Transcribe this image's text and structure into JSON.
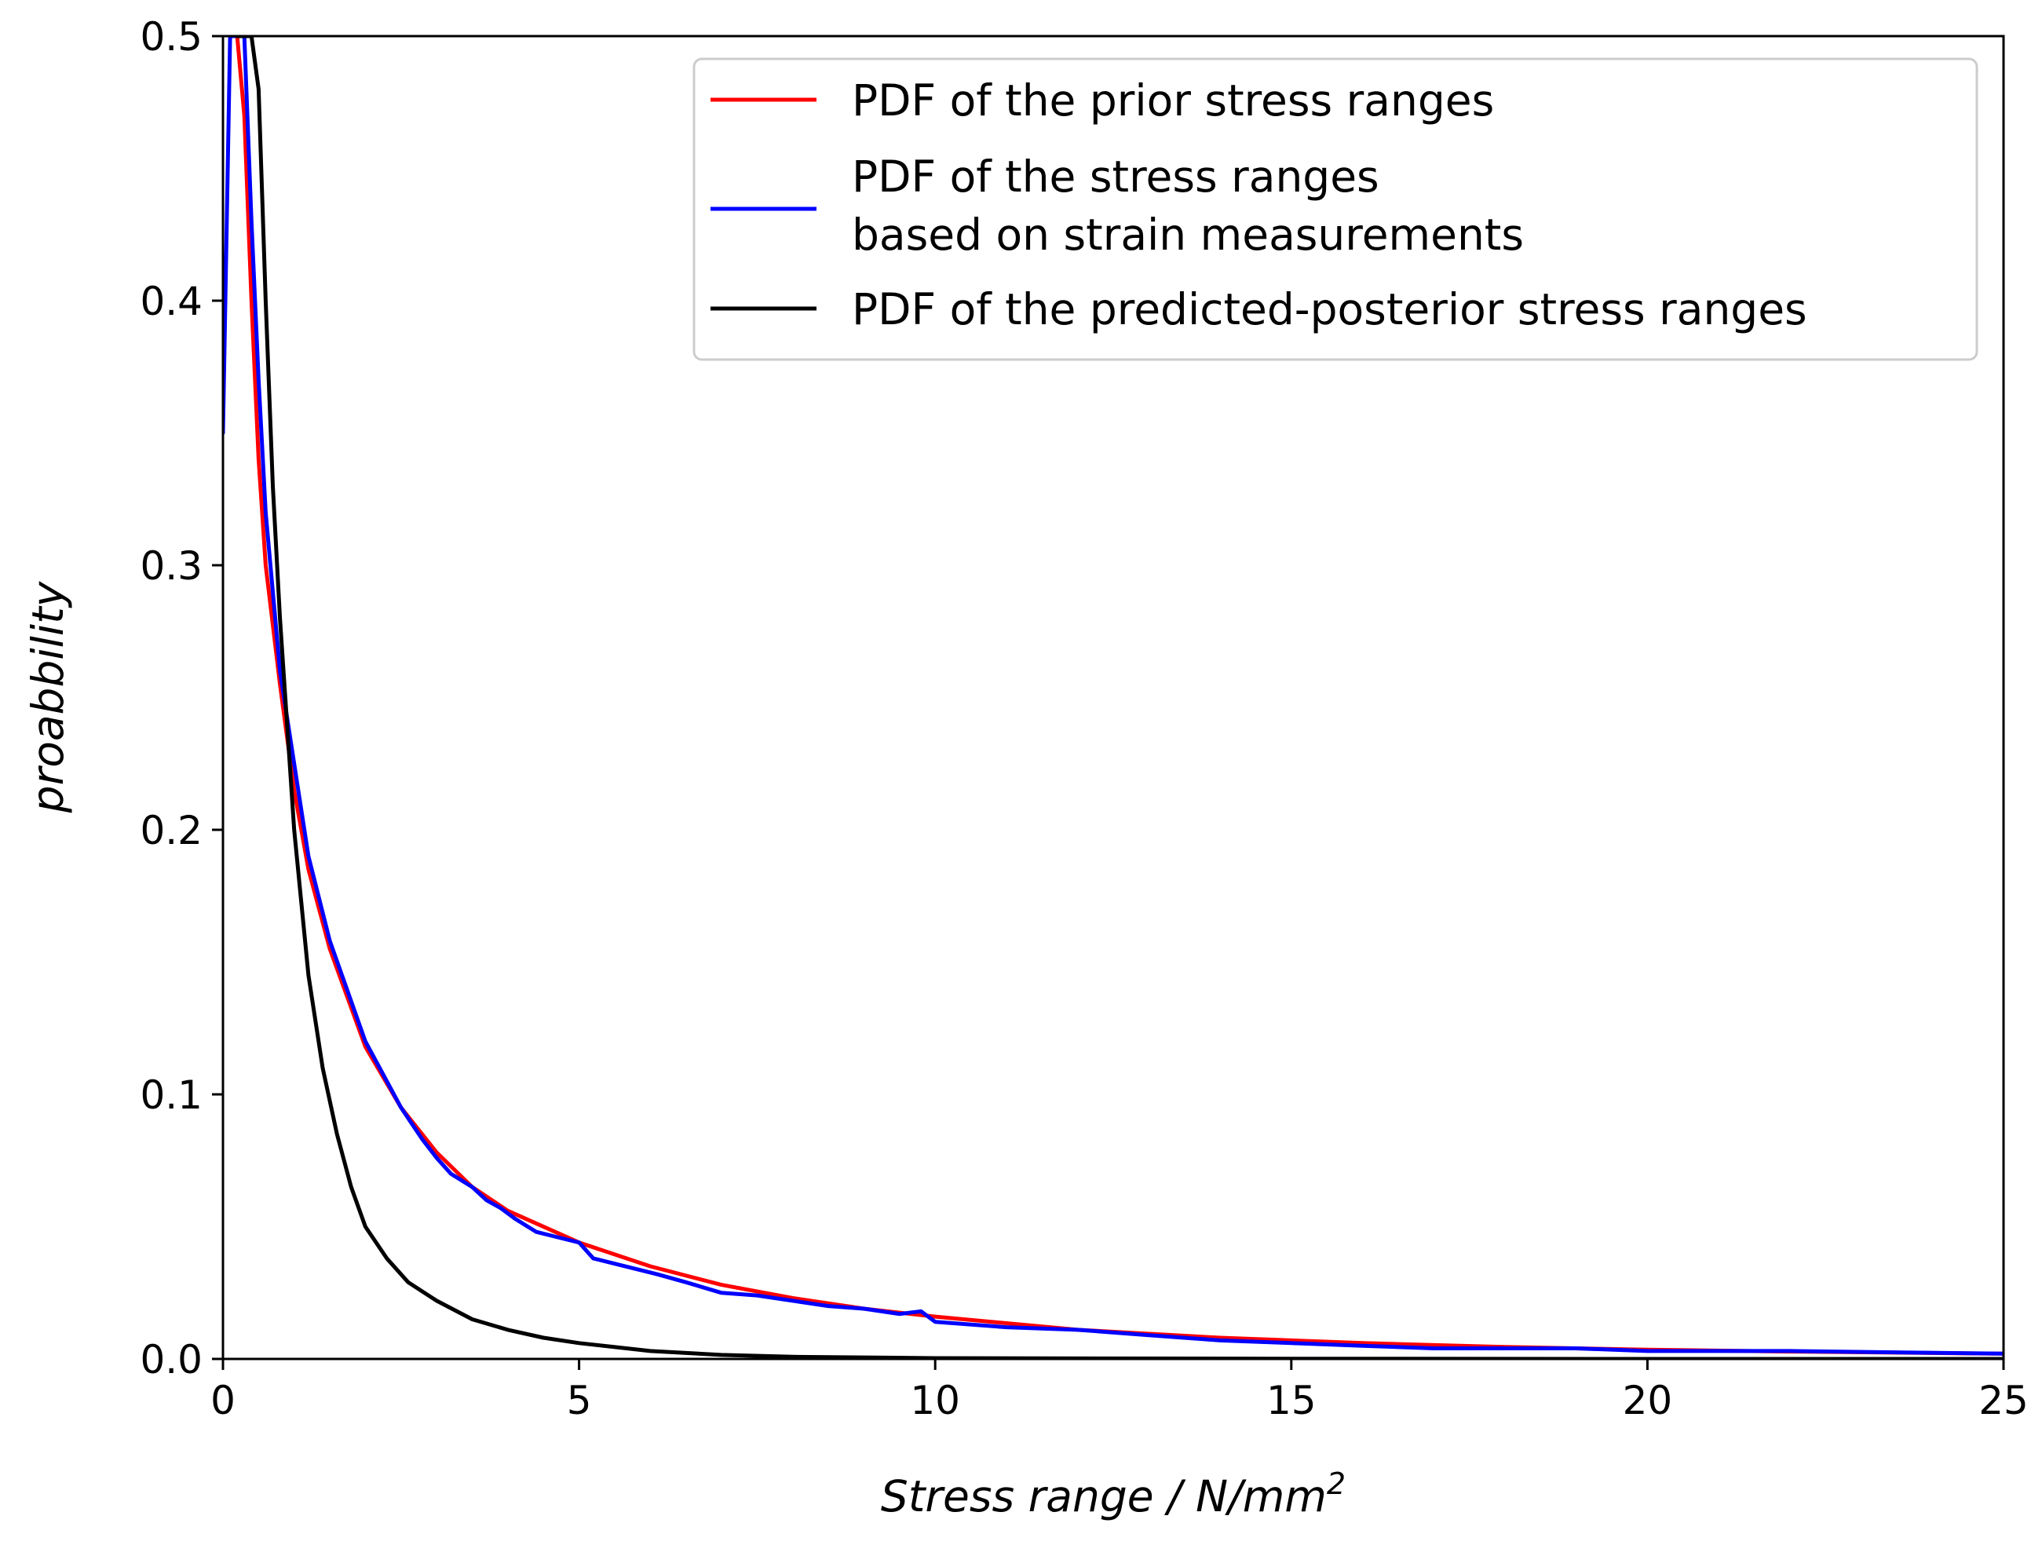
{
  "chart_data": {
    "type": "line",
    "title": "",
    "xlabel": "Stress range / N/mm",
    "xlabel_superscript": "2",
    "ylabel": "proabbility",
    "xlim": [
      0,
      25
    ],
    "ylim": [
      0,
      0.5
    ],
    "xticks": [
      0,
      5,
      10,
      15,
      20,
      25
    ],
    "yticks": [
      0.0,
      0.1,
      0.2,
      0.3,
      0.4,
      0.5
    ],
    "xtick_labels": [
      "0",
      "5",
      "10",
      "15",
      "20",
      "25"
    ],
    "ytick_labels": [
      "0.0",
      "0.1",
      "0.2",
      "0.3",
      "0.4",
      "0.5"
    ],
    "grid": false,
    "legend_position": "top-right",
    "legend": [
      {
        "label_lines": [
          "PDF of the prior stress ranges"
        ],
        "color": "#ff0000"
      },
      {
        "label_lines": [
          "PDF of the stress ranges",
          "based on strain measurements"
        ],
        "color": "#0000ff"
      },
      {
        "label_lines": [
          "PDF of the predicted-posterior stress ranges"
        ],
        "color": "#000000"
      }
    ],
    "series": [
      {
        "name": "PDF of the prior stress ranges",
        "color": "#ff0000",
        "x": [
          0.1,
          0.2,
          0.3,
          0.4,
          0.5,
          0.6,
          0.8,
          1.0,
          1.2,
          1.5,
          2.0,
          2.5,
          3.0,
          3.5,
          4.0,
          5.0,
          6.0,
          7.0,
          8.0,
          9.0,
          10.0,
          12.0,
          14.0,
          16.0,
          18.0,
          20.0,
          22.0,
          25.0
        ],
        "values": [
          0.5,
          0.5,
          0.47,
          0.4,
          0.34,
          0.3,
          0.255,
          0.215,
          0.185,
          0.155,
          0.118,
          0.095,
          0.078,
          0.065,
          0.056,
          0.044,
          0.035,
          0.028,
          0.023,
          0.019,
          0.016,
          0.011,
          0.008,
          0.006,
          0.0045,
          0.0035,
          0.0028,
          0.002
        ]
      },
      {
        "name": "PDF of the stress ranges based on strain measurements",
        "color": "#0000ff",
        "x": [
          0.0,
          0.1,
          0.2,
          0.3,
          0.4,
          0.5,
          0.6,
          0.8,
          1.0,
          1.2,
          1.5,
          2.0,
          2.3,
          2.5,
          2.8,
          3.0,
          3.2,
          3.5,
          3.7,
          3.9,
          4.1,
          4.4,
          4.7,
          5.0,
          5.2,
          5.5,
          5.8,
          6.1,
          6.5,
          7.0,
          7.5,
          8.0,
          8.5,
          9.0,
          9.5,
          9.8,
          10.0,
          11.0,
          12.0,
          13.0,
          14.0,
          15.0,
          16.0,
          17.0,
          18.0,
          19.0,
          20.0,
          22.0,
          25.0
        ],
        "values": [
          0.35,
          0.5,
          0.5,
          0.5,
          0.43,
          0.37,
          0.32,
          0.26,
          0.225,
          0.19,
          0.158,
          0.12,
          0.105,
          0.095,
          0.083,
          0.076,
          0.07,
          0.065,
          0.06,
          0.057,
          0.053,
          0.048,
          0.046,
          0.044,
          0.038,
          0.036,
          0.034,
          0.032,
          0.029,
          0.025,
          0.024,
          0.022,
          0.02,
          0.019,
          0.017,
          0.018,
          0.014,
          0.012,
          0.011,
          0.009,
          0.007,
          0.006,
          0.005,
          0.004,
          0.004,
          0.004,
          0.003,
          0.003,
          0.002
        ]
      },
      {
        "name": "PDF of the predicted-posterior stress ranges",
        "color": "#000000",
        "x": [
          0.2,
          0.3,
          0.4,
          0.5,
          0.6,
          0.7,
          0.8,
          1.0,
          1.2,
          1.4,
          1.6,
          1.8,
          2.0,
          2.3,
          2.6,
          3.0,
          3.5,
          4.0,
          4.5,
          5.0,
          6.0,
          7.0,
          8.0,
          10.0,
          15.0,
          20.0,
          25.0
        ],
        "values": [
          0.5,
          0.5,
          0.5,
          0.48,
          0.4,
          0.33,
          0.28,
          0.2,
          0.145,
          0.11,
          0.085,
          0.065,
          0.05,
          0.038,
          0.029,
          0.022,
          0.015,
          0.011,
          0.008,
          0.006,
          0.003,
          0.0015,
          0.0008,
          0.0003,
          0.0001,
          0.0,
          0.0
        ]
      }
    ]
  }
}
